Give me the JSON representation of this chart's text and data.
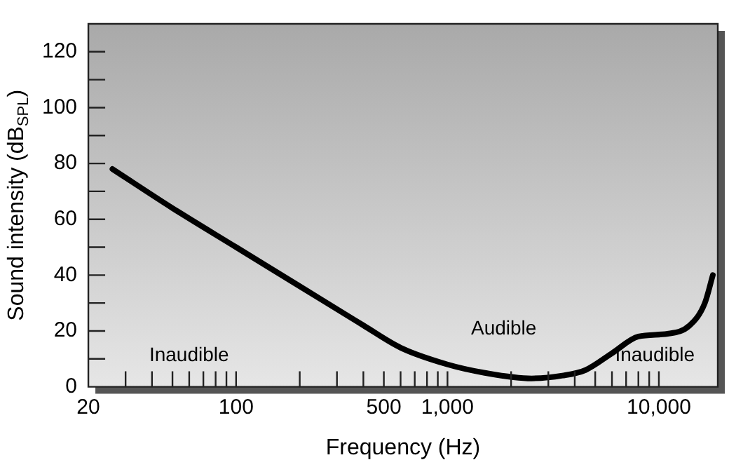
{
  "chart_data": {
    "type": "line",
    "xlabel": "Frequency (Hz)",
    "ylabel": "Sound intensity (dB$_{SPL}$)",
    "log": "x",
    "xlim": [
      20,
      19000
    ],
    "ylim": [
      0,
      130
    ],
    "xticks": [
      20,
      {
        "value": 30,
        "label": null
      },
      {
        "value": 40,
        "label": null
      },
      {
        "value": 50,
        "label": null
      },
      {
        "value": 60,
        "label": null
      },
      {
        "value": 70,
        "label": null
      },
      {
        "value": 80,
        "label": null
      },
      {
        "value": 90,
        "label": null
      },
      100,
      {
        "value": 200,
        "label": null
      },
      {
        "value": 300,
        "label": null
      },
      {
        "value": 400,
        "label": null
      },
      500,
      {
        "value": 600,
        "label": null
      },
      {
        "value": 700,
        "label": null
      },
      {
        "value": 800,
        "label": null
      },
      {
        "value": 900,
        "label": null
      },
      {
        "value": 1000,
        "label": "1,000"
      },
      {
        "value": 2000,
        "label": null
      },
      {
        "value": 3000,
        "label": null
      },
      {
        "value": 4000,
        "label": null
      },
      {
        "value": 5000,
        "label": null
      },
      {
        "value": 6000,
        "label": null
      },
      {
        "value": 7000,
        "label": null
      },
      {
        "value": 8000,
        "label": null
      },
      {
        "value": 9000,
        "label": null
      },
      {
        "value": 10000,
        "label": "10,000"
      }
    ],
    "yticks": [
      0,
      {
        "value": 10,
        "label": null
      },
      20,
      {
        "value": 30,
        "label": null
      },
      40,
      {
        "value": 50,
        "label": null
      },
      60,
      {
        "value": 70,
        "label": null
      },
      80,
      {
        "value": 90,
        "label": null
      },
      100,
      {
        "value": 110,
        "label": null
      },
      120
    ],
    "x": [
      26,
      50,
      100,
      200,
      400,
      600,
      1000,
      1500,
      2500,
      3500,
      4500,
      6000,
      8000,
      11000,
      14000,
      16500,
      18000
    ],
    "series": [
      {
        "color": "#000000",
        "values": [
          78,
          64,
          50,
          36,
          22,
          14,
          8,
          5,
          3,
          4,
          6,
          12,
          18,
          19,
          22,
          30,
          40
        ]
      }
    ],
    "annotations": [
      "Inaudible",
      "Audible",
      "Inaudible"
    ],
    "grid": false,
    "legend": false,
    "marker": "none",
    "line_style": "solid"
  }
}
